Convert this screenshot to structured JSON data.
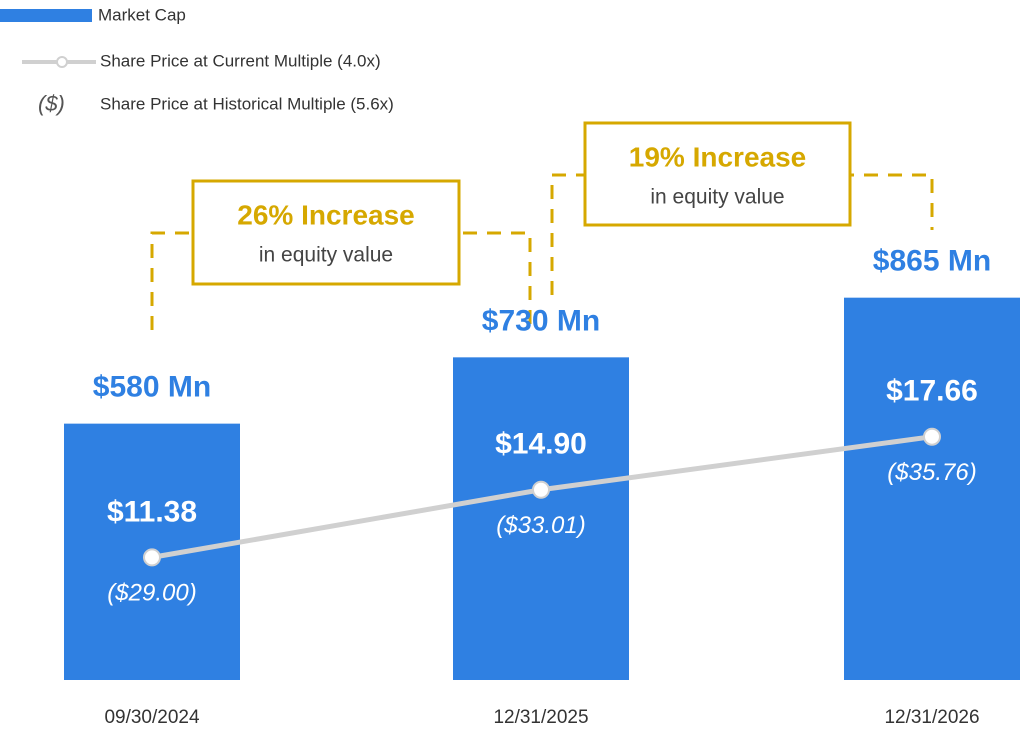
{
  "chart_data": {
    "type": "bar",
    "categories": [
      "09/30/2024",
      "12/31/2025",
      "12/31/2026"
    ],
    "series": [
      {
        "name": "Market Cap",
        "color": "#2f80e2",
        "values": [
          580,
          730,
          865
        ],
        "value_labels": [
          "$580 Mn",
          "$730 Mn",
          "$865 Mn"
        ]
      },
      {
        "name": "Share Price at Current Multiple (4.0x)",
        "type": "line",
        "axis": "y2",
        "color": "#d0d0d0",
        "values": [
          11.38,
          14.9,
          17.66
        ],
        "value_labels": [
          "$11.38",
          "$14.90",
          "$17.66"
        ]
      },
      {
        "name": "Share Price at Historical Multiple (5.6x)",
        "type": "label",
        "legend_symbol": "($)",
        "values": [
          29.0,
          33.01,
          35.76
        ],
        "value_labels": [
          "($29.00)",
          "($33.01)",
          "($35.76)"
        ]
      }
    ],
    "ylim": [
      0,
      1000
    ],
    "y2lim": [
      5,
      28
    ],
    "annotation_color": "#d6a800",
    "annotations": [
      {
        "title": "26% Increase",
        "text": "in equity value"
      },
      {
        "title": "19% Increase",
        "text": "in equity value"
      }
    ]
  }
}
